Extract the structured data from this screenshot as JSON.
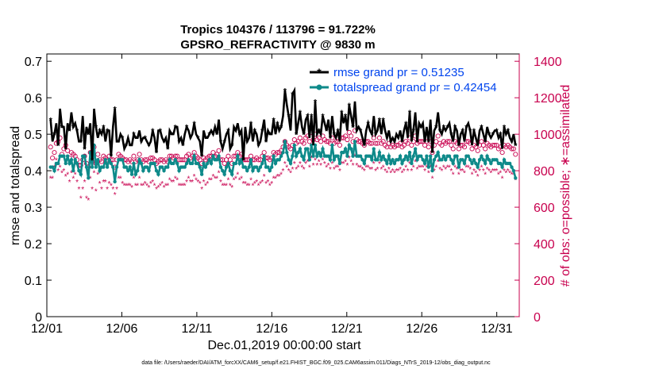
{
  "chart_data": {
    "type": "line",
    "title_line1": "Tropics 104376 / 113796 = 91.722%",
    "title_line2": "GPSRO_REFRACTIVITY @ 9830 m",
    "xlabel": "Dec.01,2019 00:00:00 start",
    "ylabel_left": "rmse and totalspread",
    "ylabel_right": "# of obs: o=possible; ∗=assimilated",
    "footer": "data file: /Users/raeder/DAI/ATM_forcXX/CAM6_setup/f.e21.FHIST_BGC.f09_025.CAM6assim.011/Diags_NTrS_2019-12/obs_diag_output.nc",
    "x_ticks": [
      "12/01",
      "12/06",
      "12/11",
      "12/16",
      "12/21",
      "12/26",
      "12/31"
    ],
    "x_tick_days": [
      0,
      5,
      10,
      15,
      20,
      25,
      30
    ],
    "xlim": [
      0,
      31.5
    ],
    "ylim_left": [
      0,
      0.72
    ],
    "y_ticks_left": [
      "0",
      "0.1",
      "0.2",
      "0.3",
      "0.4",
      "0.5",
      "0.6",
      "0.7"
    ],
    "ylim_right": [
      0,
      1440
    ],
    "y_ticks_right": [
      "0",
      "200",
      "400",
      "600",
      "800",
      "1000",
      "1200",
      "1400"
    ],
    "legend": [
      "rmse grand pr = 0.51235",
      "totalspread grand pr = 0.42454"
    ],
    "colors": {
      "rmse": "#000000",
      "spread": "#0e8a8a",
      "obs": "#c8004e",
      "legend_text": "#0044ee"
    },
    "series": [
      {
        "name": "rmse",
        "values": [
          0.54,
          0.48,
          0.5,
          0.53,
          0.47,
          0.57,
          0.52,
          0.52,
          0.46,
          0.53,
          0.51,
          0.56,
          0.52,
          0.53,
          0.51,
          0.48,
          0.48,
          0.55,
          0.46,
          0.52,
          0.5,
          0.53,
          0.43,
          0.57,
          0.52,
          0.49,
          0.51,
          0.5,
          0.52,
          0.48,
          0.51,
          0.51,
          0.44,
          0.52,
          0.57,
          0.48,
          0.48,
          0.5,
          0.49,
          0.46,
          0.47,
          0.49,
          0.47,
          0.47,
          0.5,
          0.49,
          0.49,
          0.51,
          0.48,
          0.49,
          0.49,
          0.48,
          0.47,
          0.48,
          0.51,
          0.49,
          0.45,
          0.51,
          0.51,
          0.49,
          0.48,
          0.49,
          0.46,
          0.51,
          0.5,
          0.5,
          0.52,
          0.52,
          0.48,
          0.49,
          0.47,
          0.5,
          0.52,
          0.51,
          0.49,
          0.5,
          0.53,
          0.5,
          0.49,
          0.48,
          0.44,
          0.51,
          0.49,
          0.49,
          0.5,
          0.51,
          0.5,
          0.52,
          0.5,
          0.54,
          0.48,
          0.46,
          0.48,
          0.5,
          0.51,
          0.46,
          0.47,
          0.52,
          0.51,
          0.53,
          0.5,
          0.51,
          0.43,
          0.52,
          0.48,
          0.49,
          0.53,
          0.48,
          0.51,
          0.5,
          0.47,
          0.48,
          0.51,
          0.54,
          0.48,
          0.51,
          0.5,
          0.5,
          0.54,
          0.5,
          0.53,
          0.51,
          0.52,
          0.55,
          0.62,
          0.58,
          0.55,
          0.51,
          0.61,
          0.62,
          0.5,
          0.53,
          0.56,
          0.52,
          0.5,
          0.54,
          0.55,
          0.49,
          0.55,
          0.47,
          0.59,
          0.5,
          0.51,
          0.5,
          0.55,
          0.53,
          0.51,
          0.54,
          0.49,
          0.55,
          0.5,
          0.49,
          0.51,
          0.48,
          0.56,
          0.53,
          0.55,
          0.51,
          0.58,
          0.55,
          0.52,
          0.59,
          0.51,
          0.52,
          0.51,
          0.49,
          0.47,
          0.51,
          0.53,
          0.51,
          0.5,
          0.55,
          0.5,
          0.51,
          0.54,
          0.5,
          0.54,
          0.51,
          0.49,
          0.51,
          0.48,
          0.49,
          0.48,
          0.5,
          0.49,
          0.51,
          0.48,
          0.51,
          0.53,
          0.49,
          0.56,
          0.48,
          0.51,
          0.56,
          0.48,
          0.53,
          0.52,
          0.53,
          0.48,
          0.52,
          0.48,
          0.54,
          0.45,
          0.51,
          0.52,
          0.56,
          0.51,
          0.5,
          0.52,
          0.51,
          0.52,
          0.53,
          0.5,
          0.48,
          0.52,
          0.51,
          0.47,
          0.5,
          0.51,
          0.48,
          0.52,
          0.53,
          0.51,
          0.47,
          0.51,
          0.49,
          0.47,
          0.51,
          0.52,
          0.5,
          0.48,
          0.52,
          0.5,
          0.49,
          0.5,
          0.51,
          0.51,
          0.49,
          0.5,
          0.46,
          0.52,
          0.5,
          0.51,
          0.49,
          0.48,
          0.5,
          0.47
        ]
      },
      {
        "name": "totalspread",
        "values": [
          0.41,
          0.41,
          0.4,
          0.42,
          0.42,
          0.44,
          0.44,
          0.44,
          0.42,
          0.44,
          0.42,
          0.43,
          0.4,
          0.43,
          0.42,
          0.4,
          0.39,
          0.44,
          0.44,
          0.41,
          0.38,
          0.45,
          0.41,
          0.47,
          0.41,
          0.43,
          0.4,
          0.41,
          0.41,
          0.43,
          0.41,
          0.43,
          0.42,
          0.41,
          0.37,
          0.41,
          0.43,
          0.43,
          0.43,
          0.41,
          0.41,
          0.4,
          0.41,
          0.39,
          0.42,
          0.39,
          0.4,
          0.43,
          0.42,
          0.4,
          0.41,
          0.41,
          0.4,
          0.42,
          0.42,
          0.42,
          0.4,
          0.39,
          0.41,
          0.41,
          0.4,
          0.41,
          0.41,
          0.43,
          0.42,
          0.42,
          0.43,
          0.42,
          0.4,
          0.41,
          0.41,
          0.41,
          0.42,
          0.43,
          0.42,
          0.42,
          0.44,
          0.42,
          0.42,
          0.41,
          0.39,
          0.42,
          0.41,
          0.42,
          0.43,
          0.42,
          0.44,
          0.43,
          0.43,
          0.44,
          0.41,
          0.4,
          0.39,
          0.41,
          0.42,
          0.4,
          0.39,
          0.42,
          0.42,
          0.44,
          0.42,
          0.43,
          0.41,
          0.41,
          0.4,
          0.41,
          0.43,
          0.4,
          0.41,
          0.41,
          0.4,
          0.41,
          0.42,
          0.44,
          0.41,
          0.41,
          0.4,
          0.41,
          0.44,
          0.42,
          0.43,
          0.43,
          0.44,
          0.45,
          0.48,
          0.45,
          0.43,
          0.42,
          0.44,
          0.47,
          0.44,
          0.45,
          0.46,
          0.44,
          0.43,
          0.46,
          0.46,
          0.43,
          0.47,
          0.44,
          0.47,
          0.44,
          0.45,
          0.44,
          0.46,
          0.44,
          0.44,
          0.44,
          0.43,
          0.47,
          0.43,
          0.44,
          0.44,
          0.42,
          0.45,
          0.45,
          0.46,
          0.44,
          0.47,
          0.46,
          0.44,
          0.48,
          0.44,
          0.44,
          0.44,
          0.43,
          0.42,
          0.44,
          0.44,
          0.44,
          0.43,
          0.46,
          0.43,
          0.43,
          0.45,
          0.43,
          0.44,
          0.43,
          0.42,
          0.44,
          0.42,
          0.43,
          0.42,
          0.43,
          0.43,
          0.44,
          0.42,
          0.43,
          0.44,
          0.43,
          0.45,
          0.42,
          0.44,
          0.46,
          0.43,
          0.44,
          0.44,
          0.43,
          0.42,
          0.44,
          0.41,
          0.44,
          0.4,
          0.43,
          0.44,
          0.45,
          0.43,
          0.43,
          0.44,
          0.43,
          0.44,
          0.44,
          0.43,
          0.42,
          0.44,
          0.44,
          0.41,
          0.43,
          0.43,
          0.42,
          0.44,
          0.44,
          0.43,
          0.42,
          0.43,
          0.42,
          0.41,
          0.43,
          0.44,
          0.43,
          0.42,
          0.44,
          0.43,
          0.42,
          0.43,
          0.43,
          0.43,
          0.42,
          0.42,
          0.41,
          0.43,
          0.42,
          0.42,
          0.42,
          0.41,
          0.4,
          0.38
        ]
      },
      {
        "name": "obs_possible",
        "values": [
          930,
          870,
          900,
          950,
          960,
          980,
          890,
          920,
          940,
          910,
          870,
          900,
          890,
          880,
          860,
          830,
          830,
          860,
          880,
          840,
          820,
          900,
          850,
          930,
          840,
          890,
          860,
          850,
          880,
          870,
          860,
          880,
          860,
          860,
          820,
          860,
          890,
          880,
          870,
          860,
          860,
          850,
          860,
          850,
          880,
          850,
          860,
          890,
          860,
          850,
          860,
          860,
          850,
          870,
          870,
          860,
          840,
          850,
          860,
          860,
          850,
          860,
          850,
          880,
          880,
          870,
          880,
          880,
          860,
          860,
          860,
          860,
          880,
          890,
          870,
          880,
          900,
          880,
          870,
          860,
          840,
          870,
          860,
          870,
          880,
          880,
          900,
          880,
          890,
          910,
          860,
          860,
          840,
          860,
          880,
          860,
          840,
          880,
          880,
          900,
          880,
          890,
          860,
          860,
          860,
          860,
          880,
          860,
          860,
          870,
          860,
          860,
          880,
          900,
          870,
          870,
          860,
          870,
          900,
          890,
          900,
          900,
          910,
          930,
          960,
          940,
          930,
          920,
          940,
          970,
          950,
          960,
          980,
          960,
          950,
          980,
          990,
          960,
          1010,
          970,
          1000,
          970,
          980,
          960,
          990,
          970,
          960,
          960,
          950,
          980,
          950,
          960,
          960,
          940,
          980,
          980,
          990,
          970,
          1010,
          990,
          960,
          1020,
          970,
          960,
          960,
          950,
          940,
          960,
          960,
          950,
          950,
          980,
          950,
          950,
          980,
          950,
          960,
          940,
          930,
          950,
          930,
          940,
          930,
          940,
          940,
          950,
          930,
          940,
          960,
          950,
          980,
          940,
          960,
          990,
          950,
          960,
          960,
          960,
          940,
          960,
          930,
          960,
          900,
          940,
          960,
          990,
          950,
          940,
          960,
          950,
          960,
          960,
          940,
          920,
          960,
          950,
          920,
          940,
          940,
          930,
          960,
          960,
          950,
          920,
          940,
          930,
          910,
          940,
          960,
          940,
          920,
          950,
          940,
          930,
          940,
          940,
          940,
          920,
          930,
          900,
          940,
          930,
          940,
          930,
          920,
          920,
          890
        ]
      },
      {
        "name": "obs_assimilated",
        "values": [
          760,
          760,
          820,
          860,
          800,
          820,
          790,
          800,
          770,
          780,
          740,
          790,
          760,
          780,
          740,
          700,
          650,
          700,
          740,
          650,
          640,
          760,
          700,
          790,
          690,
          780,
          730,
          700,
          740,
          740,
          700,
          730,
          720,
          700,
          670,
          700,
          760,
          760,
          730,
          720,
          720,
          720,
          720,
          710,
          760,
          720,
          720,
          760,
          720,
          720,
          730,
          720,
          710,
          730,
          740,
          720,
          700,
          710,
          720,
          730,
          710,
          720,
          720,
          750,
          740,
          740,
          760,
          750,
          720,
          720,
          720,
          720,
          740,
          760,
          740,
          740,
          770,
          750,
          740,
          730,
          700,
          740,
          720,
          730,
          750,
          750,
          770,
          760,
          760,
          790,
          740,
          720,
          720,
          720,
          750,
          720,
          710,
          750,
          760,
          780,
          750,
          760,
          730,
          730,
          720,
          720,
          750,
          720,
          730,
          740,
          720,
          730,
          740,
          770,
          730,
          740,
          720,
          730,
          760,
          760,
          770,
          770,
          780,
          800,
          840,
          820,
          800,
          790,
          810,
          840,
          810,
          820,
          840,
          820,
          810,
          840,
          850,
          820,
          870,
          830,
          860,
          830,
          850,
          830,
          860,
          840,
          820,
          830,
          810,
          840,
          810,
          820,
          820,
          800,
          840,
          840,
          850,
          830,
          870,
          850,
          830,
          880,
          830,
          820,
          820,
          810,
          800,
          820,
          820,
          810,
          810,
          840,
          800,
          810,
          840,
          810,
          820,
          800,
          790,
          810,
          790,
          800,
          790,
          800,
          800,
          810,
          790,
          800,
          820,
          800,
          840,
          800,
          820,
          850,
          810,
          820,
          820,
          820,
          800,
          820,
          790,
          820,
          760,
          800,
          820,
          850,
          810,
          800,
          820,
          810,
          820,
          820,
          800,
          780,
          820,
          810,
          780,
          800,
          800,
          790,
          820,
          820,
          810,
          780,
          800,
          790,
          770,
          800,
          820,
          800,
          780,
          810,
          800,
          790,
          800,
          800,
          800,
          780,
          790,
          760,
          800,
          790,
          800,
          790,
          780,
          780,
          750
        ]
      }
    ]
  }
}
